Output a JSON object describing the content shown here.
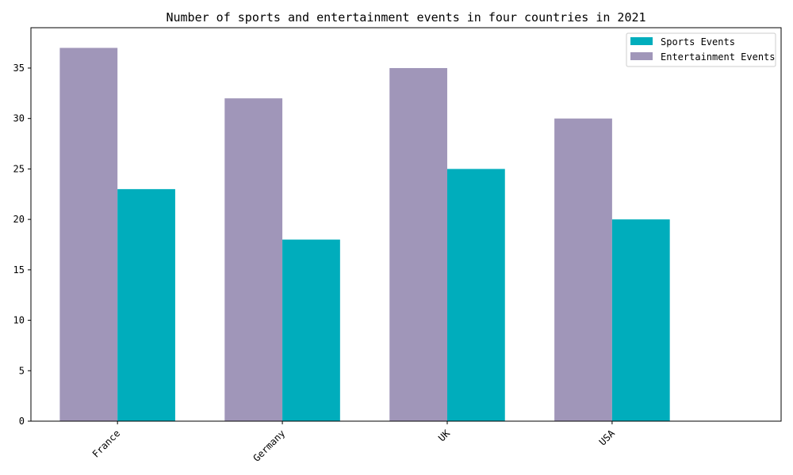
{
  "chart_data": {
    "type": "bar",
    "title": "Number of sports and entertainment events in four countries in 2021",
    "xlabel": "",
    "ylabel": "",
    "categories": [
      "France",
      "Germany",
      "UK",
      "USA"
    ],
    "series": [
      {
        "name": "Sports Events",
        "values": [
          23,
          18,
          25,
          20
        ],
        "color": "#00adbc"
      },
      {
        "name": "Entertainment Events",
        "values": [
          37,
          32,
          35,
          30
        ],
        "color": "#a096b9"
      }
    ],
    "ylim": [
      0,
      39
    ],
    "yticks": [
      0,
      5,
      10,
      15,
      20,
      25,
      30,
      35
    ],
    "grid": false,
    "legend_position": "top-right"
  }
}
